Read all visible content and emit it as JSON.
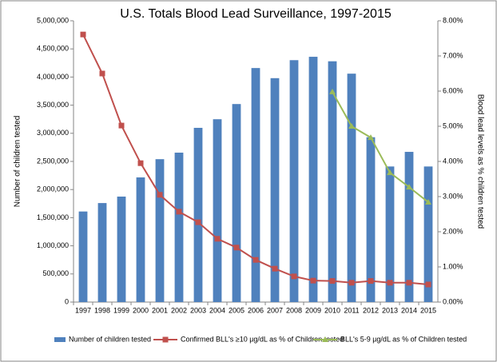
{
  "chart_data": {
    "type": "bar-line",
    "title": "U.S. Totals Blood Lead Surveillance, 1997-2015",
    "y_label": "Number of children tested",
    "y2_label": "Blood lead levels as % children tested",
    "categories": [
      "1997",
      "1998",
      "1999",
      "2000",
      "2001",
      "2002",
      "2003",
      "2004",
      "2005",
      "2006",
      "2007",
      "2008",
      "2009",
      "2010",
      "2011",
      "2012",
      "2013",
      "2014",
      "2015"
    ],
    "series": [
      {
        "name": "Number of children tested",
        "type": "bar",
        "color": "#4f81bd",
        "values": [
          1610000,
          1760000,
          1875000,
          2216000,
          2540000,
          2656000,
          3097000,
          3250000,
          3520000,
          4160000,
          3980000,
          4300000,
          4360000,
          4280000,
          4060000,
          2930000,
          2410000,
          2670000,
          2410000
        ]
      },
      {
        "name": "Confirmed BLL's ≥10 µg/dL as % of Children tested",
        "type": "line",
        "axis": "y2",
        "color": "#c0504d",
        "marker": "square",
        "values": [
          7.61,
          6.5,
          5.02,
          3.95,
          3.05,
          2.57,
          2.27,
          1.8,
          1.55,
          1.2,
          0.95,
          0.73,
          0.61,
          0.6,
          0.55,
          0.6,
          0.55,
          0.55,
          0.5
        ]
      },
      {
        "name": "BLL's 5-9 µg/dL as % of Children tested",
        "type": "line",
        "axis": "y2",
        "color": "#9bbb59",
        "marker": "triangle",
        "values": [
          null,
          null,
          null,
          null,
          null,
          null,
          null,
          null,
          null,
          null,
          null,
          null,
          null,
          5.98,
          5.0,
          4.68,
          3.68,
          3.27,
          2.84
        ]
      }
    ],
    "ylim": [
      0,
      5000000
    ],
    "yticks": [
      0,
      {
        "value": 500000,
        "label": "500,000"
      },
      {
        "value": 1000000,
        "label": "1,000,000"
      },
      {
        "value": 1500000,
        "label": "1,500,000"
      },
      {
        "value": 2000000,
        "label": "2,000,000"
      },
      {
        "value": 2500000,
        "label": "2,500,000"
      },
      {
        "value": 3000000,
        "label": "3,000,000"
      },
      {
        "value": 3500000,
        "label": "3,500,000"
      },
      {
        "value": 4000000,
        "label": "4,000,000"
      },
      {
        "value": 4500000,
        "label": "4,500,000"
      },
      {
        "value": 5000000,
        "label": "5,000,000"
      }
    ],
    "y2lim": [
      0,
      8
    ],
    "y2ticks": [
      {
        "value": 0,
        "label": "0.00%"
      },
      {
        "value": 1,
        "label": "1.00%"
      },
      {
        "value": 2,
        "label": "2.00%"
      },
      {
        "value": 3,
        "label": "3.00%"
      },
      {
        "value": 4,
        "label": "4.00%"
      },
      {
        "value": 5,
        "label": "5.00%"
      },
      {
        "value": 6,
        "label": "6.00%"
      },
      {
        "value": 7,
        "label": "7.00%"
      },
      {
        "value": 8,
        "label": "8.00%"
      }
    ],
    "grid": false,
    "legend": "bottom"
  }
}
